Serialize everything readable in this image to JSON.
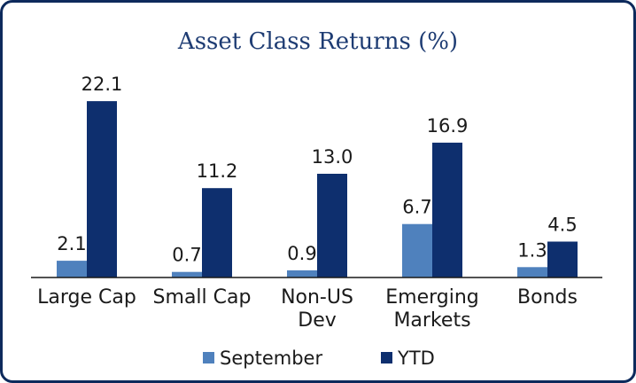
{
  "chart_data": {
    "type": "bar",
    "title": "Asset Class Returns (%)",
    "categories": [
      [
        "Large Cap"
      ],
      [
        "Small Cap"
      ],
      [
        "Non-US",
        "Dev"
      ],
      [
        "Emerging",
        "Markets"
      ],
      [
        "Bonds"
      ]
    ],
    "series": [
      {
        "name": "September",
        "values": [
          2.1,
          0.7,
          0.9,
          6.7,
          1.3
        ],
        "color": "#4f81bd",
        "labels": [
          "2.1",
          "0.7",
          "0.9",
          "6.7",
          "1.3"
        ]
      },
      {
        "name": "YTD",
        "values": [
          22.1,
          11.2,
          13.0,
          16.9,
          4.5
        ],
        "color": "#0e2f6e",
        "labels": [
          "22.1",
          "11.2",
          "13.0",
          "16.9",
          "4.5"
        ]
      }
    ],
    "ylim": [
      0,
      23
    ],
    "grid": false,
    "legend": "bottom",
    "xlabel": "",
    "ylabel": ""
  },
  "colors": {
    "border": "#0d2a5c",
    "axis": "#1a1a1a"
  }
}
